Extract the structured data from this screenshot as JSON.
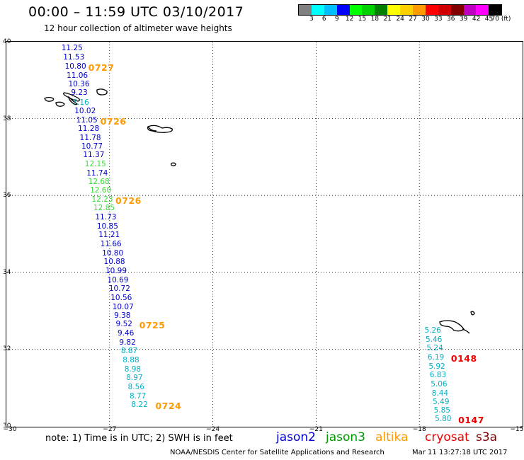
{
  "title": "00:00 – 11:59 UTC 03/10/2017",
  "subtitle": "12 hour collection of altimeter wave heights",
  "legend": {
    "colors": [
      "#808080",
      "#00ffff",
      "#00bfff",
      "#0000ff",
      "#00ff00",
      "#00d000",
      "#008000",
      "#ffff00",
      "#ffd000",
      "#ff9900",
      "#ff0000",
      "#d00000",
      "#800000",
      "#c000c0",
      "#ff00ff",
      "#000000"
    ],
    "labels": [
      "3",
      "6",
      "9",
      "12",
      "15",
      "18",
      "21",
      "24",
      "27",
      "30",
      "33",
      "36",
      "39",
      "42",
      "45",
      "70 (ft)"
    ]
  },
  "latitudes": [
    "40",
    "38",
    "36",
    "34",
    "32",
    "30"
  ],
  "longitudes": [
    "−30",
    "−27",
    "−24",
    "−21",
    "−18",
    "−15"
  ],
  "observations": [
    {
      "v": "11.25",
      "lat": 39.83,
      "lon": -28.4,
      "c": "#0000cc"
    },
    {
      "v": "11.53",
      "lat": 39.6,
      "lon": -28.35,
      "c": "#0000cc"
    },
    {
      "v": "10.80",
      "lat": 39.36,
      "lon": -28.3,
      "c": "#0000cc"
    },
    {
      "v": "11.06",
      "lat": 39.12,
      "lon": -28.25,
      "c": "#0000cc"
    },
    {
      "v": "10.36",
      "lat": 38.9,
      "lon": -28.2,
      "c": "#0000cc"
    },
    {
      "v": "9.23",
      "lat": 38.67,
      "lon": -28.12,
      "c": "#0000cc"
    },
    {
      "v": "7.16",
      "lat": 38.42,
      "lon": -28.08,
      "c": "#00b0c8"
    },
    {
      "v": "10.02",
      "lat": 38.2,
      "lon": -28.02,
      "c": "#0000cc"
    },
    {
      "v": "11.05",
      "lat": 37.95,
      "lon": -27.97,
      "c": "#0000cc"
    },
    {
      "v": "11.28",
      "lat": 37.73,
      "lon": -27.92,
      "c": "#0000cc"
    },
    {
      "v": "11.78",
      "lat": 37.5,
      "lon": -27.87,
      "c": "#0000cc"
    },
    {
      "v": "10.77",
      "lat": 37.27,
      "lon": -27.82,
      "c": "#0000cc"
    },
    {
      "v": "11.37",
      "lat": 37.05,
      "lon": -27.77,
      "c": "#0000cc"
    },
    {
      "v": "12.15",
      "lat": 36.82,
      "lon": -27.72,
      "c": "#33dd33"
    },
    {
      "v": "11.74",
      "lat": 36.58,
      "lon": -27.67,
      "c": "#0000cc"
    },
    {
      "v": "12.68",
      "lat": 36.35,
      "lon": -27.62,
      "c": "#33dd33"
    },
    {
      "v": "12.60",
      "lat": 36.13,
      "lon": -27.57,
      "c": "#33dd33"
    },
    {
      "v": "12.23",
      "lat": 35.9,
      "lon": -27.52,
      "c": "#33dd33"
    },
    {
      "v": "12.85",
      "lat": 35.67,
      "lon": -27.47,
      "c": "#33dd33"
    },
    {
      "v": "11.73",
      "lat": 35.43,
      "lon": -27.42,
      "c": "#0000cc"
    },
    {
      "v": "10.85",
      "lat": 35.2,
      "lon": -27.37,
      "c": "#0000cc"
    },
    {
      "v": "11.21",
      "lat": 34.97,
      "lon": -27.32,
      "c": "#0000cc"
    },
    {
      "v": "11.66",
      "lat": 34.73,
      "lon": -27.27,
      "c": "#0000cc"
    },
    {
      "v": "10.80",
      "lat": 34.5,
      "lon": -27.22,
      "c": "#0000cc"
    },
    {
      "v": "10.88",
      "lat": 34.27,
      "lon": -27.17,
      "c": "#0000cc"
    },
    {
      "v": "10.99",
      "lat": 34.03,
      "lon": -27.12,
      "c": "#0000cc"
    },
    {
      "v": "10.69",
      "lat": 33.8,
      "lon": -27.07,
      "c": "#0000cc"
    },
    {
      "v": "10.72",
      "lat": 33.57,
      "lon": -27.02,
      "c": "#0000cc"
    },
    {
      "v": "10.56",
      "lat": 33.33,
      "lon": -26.97,
      "c": "#0000cc"
    },
    {
      "v": "10.07",
      "lat": 33.1,
      "lon": -26.92,
      "c": "#0000cc"
    },
    {
      "v": "9.38",
      "lat": 32.87,
      "lon": -26.87,
      "c": "#0000cc"
    },
    {
      "v": "9.52",
      "lat": 32.65,
      "lon": -26.82,
      "c": "#0000cc"
    },
    {
      "v": "9.46",
      "lat": 32.42,
      "lon": -26.77,
      "c": "#0000cc"
    },
    {
      "v": "9.82",
      "lat": 32.18,
      "lon": -26.72,
      "c": "#0000cc"
    },
    {
      "v": "8.87",
      "lat": 31.95,
      "lon": -26.67,
      "c": "#00b0c8"
    },
    {
      "v": "8.88",
      "lat": 31.72,
      "lon": -26.62,
      "c": "#00b0c8"
    },
    {
      "v": "8.98",
      "lat": 31.48,
      "lon": -26.57,
      "c": "#00b0c8"
    },
    {
      "v": "8.97",
      "lat": 31.25,
      "lon": -26.52,
      "c": "#00b0c8"
    },
    {
      "v": "8.56",
      "lat": 31.02,
      "lon": -26.47,
      "c": "#00b0c8"
    },
    {
      "v": "8.77",
      "lat": 30.78,
      "lon": -26.42,
      "c": "#00b0c8"
    },
    {
      "v": "8.22",
      "lat": 30.55,
      "lon": -26.37,
      "c": "#00b0c8"
    },
    {
      "v": "5.26",
      "lat": 32.48,
      "lon": -17.85,
      "c": "#00b0c8"
    },
    {
      "v": "5.46",
      "lat": 32.25,
      "lon": -17.82,
      "c": "#00b0c8"
    },
    {
      "v": "5.24",
      "lat": 32.02,
      "lon": -17.79,
      "c": "#00b0c8"
    },
    {
      "v": "6.19",
      "lat": 31.78,
      "lon": -17.76,
      "c": "#00b0c8"
    },
    {
      "v": "5.92",
      "lat": 31.55,
      "lon": -17.73,
      "c": "#00b0c8"
    },
    {
      "v": "6.83",
      "lat": 31.32,
      "lon": -17.7,
      "c": "#00b0c8"
    },
    {
      "v": "5.06",
      "lat": 31.08,
      "lon": -17.67,
      "c": "#00b0c8"
    },
    {
      "v": "8.44",
      "lat": 30.85,
      "lon": -17.64,
      "c": "#00b0c8"
    },
    {
      "v": "5.49",
      "lat": 30.62,
      "lon": -17.61,
      "c": "#00b0c8"
    },
    {
      "v": "5.85",
      "lat": 30.4,
      "lon": -17.58,
      "c": "#00b0c8"
    },
    {
      "v": "5.80",
      "lat": 30.18,
      "lon": -17.55,
      "c": "#00b0c8"
    }
  ],
  "pass_labels": [
    {
      "v": "0727",
      "lat": 39.36,
      "lon": -27.62,
      "c": "#ff9900"
    },
    {
      "v": "0726",
      "lat": 37.95,
      "lon": -27.27,
      "c": "#ff9900"
    },
    {
      "v": "0726",
      "lat": 35.9,
      "lon": -26.83,
      "c": "#ff9900"
    },
    {
      "v": "0725",
      "lat": 32.65,
      "lon": -26.14,
      "c": "#ff9900"
    },
    {
      "v": "0724",
      "lat": 30.55,
      "lon": -25.67,
      "c": "#ff9900"
    },
    {
      "v": "0148",
      "lat": 31.78,
      "lon": -17.08,
      "c": "#ee0000"
    },
    {
      "v": "0147",
      "lat": 30.18,
      "lon": -16.87,
      "c": "#ee0000"
    }
  ],
  "note": "note:  1) Time is in UTC;  2) SWH is in feet",
  "satellites": [
    {
      "name": "jason2",
      "c": "#0000cc"
    },
    {
      "name": "jason3",
      "c": "#009900"
    },
    {
      "name": "altika",
      "c": "#ff9900"
    },
    {
      "name": "cryosat",
      "c": "#ee0000"
    },
    {
      "name": "s3a",
      "c": "#800000"
    }
  ],
  "credit": "NOAA/NESDIS Center for Satellite Applications and Research",
  "timestamp": "Mar 11 13:27:18 UTC 2017"
}
